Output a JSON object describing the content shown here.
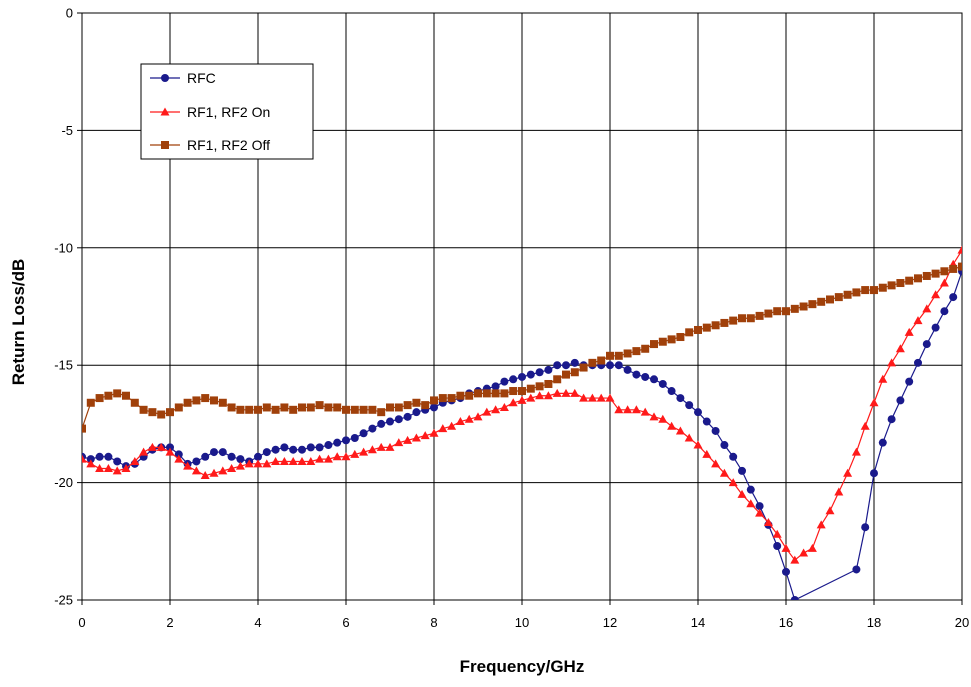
{
  "chart_data": {
    "type": "line",
    "title": "",
    "xlabel": "Frequency/GHz",
    "ylabel": "Return Loss/dB",
    "xlim": [
      0,
      20
    ],
    "ylim": [
      -25,
      0
    ],
    "x_ticks": [
      0,
      2,
      4,
      6,
      8,
      10,
      12,
      14,
      16,
      18,
      20
    ],
    "y_ticks": [
      0,
      -5,
      -10,
      -15,
      -20,
      -25
    ],
    "x_tick_labels": [
      "0",
      "2",
      "4",
      "6",
      "8",
      "10",
      "12",
      "14",
      "16",
      "18",
      "20"
    ],
    "y_tick_labels": [
      "0",
      "-5",
      "-10",
      "-15",
      "-20",
      "-25"
    ],
    "grid": true,
    "legend_position": "top-left",
    "series": [
      {
        "name": "RFC",
        "color": "#1a1a8c",
        "marker": "circle",
        "points": [
          [
            0,
            -18.9
          ],
          [
            0.2,
            -19.0
          ],
          [
            0.4,
            -18.9
          ],
          [
            0.6,
            -18.9
          ],
          [
            0.8,
            -19.1
          ],
          [
            1.0,
            -19.3
          ],
          [
            1.2,
            -19.2
          ],
          [
            1.4,
            -18.9
          ],
          [
            1.6,
            -18.6
          ],
          [
            1.8,
            -18.5
          ],
          [
            2.0,
            -18.5
          ],
          [
            2.2,
            -18.8
          ],
          [
            2.4,
            -19.2
          ],
          [
            2.6,
            -19.1
          ],
          [
            2.8,
            -18.9
          ],
          [
            3.0,
            -18.7
          ],
          [
            3.2,
            -18.7
          ],
          [
            3.4,
            -18.9
          ],
          [
            3.6,
            -19.0
          ],
          [
            3.8,
            -19.1
          ],
          [
            4.0,
            -18.9
          ],
          [
            4.2,
            -18.7
          ],
          [
            4.4,
            -18.6
          ],
          [
            4.6,
            -18.5
          ],
          [
            4.8,
            -18.6
          ],
          [
            5.0,
            -18.6
          ],
          [
            5.2,
            -18.5
          ],
          [
            5.4,
            -18.5
          ],
          [
            5.6,
            -18.4
          ],
          [
            5.8,
            -18.3
          ],
          [
            6.0,
            -18.2
          ],
          [
            6.2,
            -18.1
          ],
          [
            6.4,
            -17.9
          ],
          [
            6.6,
            -17.7
          ],
          [
            6.8,
            -17.5
          ],
          [
            7.0,
            -17.4
          ],
          [
            7.2,
            -17.3
          ],
          [
            7.4,
            -17.2
          ],
          [
            7.6,
            -17.0
          ],
          [
            7.8,
            -16.9
          ],
          [
            8.0,
            -16.8
          ],
          [
            8.2,
            -16.6
          ],
          [
            8.4,
            -16.5
          ],
          [
            8.6,
            -16.4
          ],
          [
            8.8,
            -16.2
          ],
          [
            9.0,
            -16.1
          ],
          [
            9.2,
            -16.0
          ],
          [
            9.4,
            -15.9
          ],
          [
            9.6,
            -15.7
          ],
          [
            9.8,
            -15.6
          ],
          [
            10.0,
            -15.5
          ],
          [
            10.2,
            -15.4
          ],
          [
            10.4,
            -15.3
          ],
          [
            10.6,
            -15.2
          ],
          [
            10.8,
            -15.0
          ],
          [
            11.0,
            -15.0
          ],
          [
            11.2,
            -14.9
          ],
          [
            11.4,
            -15.0
          ],
          [
            11.6,
            -15.0
          ],
          [
            11.8,
            -15.0
          ],
          [
            12.0,
            -15.0
          ],
          [
            12.2,
            -15.0
          ],
          [
            12.4,
            -15.2
          ],
          [
            12.6,
            -15.4
          ],
          [
            12.8,
            -15.5
          ],
          [
            13.0,
            -15.6
          ],
          [
            13.2,
            -15.8
          ],
          [
            13.4,
            -16.1
          ],
          [
            13.6,
            -16.4
          ],
          [
            13.8,
            -16.7
          ],
          [
            14.0,
            -17.0
          ],
          [
            14.2,
            -17.4
          ],
          [
            14.4,
            -17.8
          ],
          [
            14.6,
            -18.4
          ],
          [
            14.8,
            -18.9
          ],
          [
            15.0,
            -19.5
          ],
          [
            15.2,
            -20.3
          ],
          [
            15.4,
            -21.0
          ],
          [
            15.6,
            -21.8
          ],
          [
            15.8,
            -22.7
          ],
          [
            16.0,
            -23.8
          ],
          [
            16.2,
            -25.0
          ],
          [
            17.6,
            -23.7
          ],
          [
            17.8,
            -21.9
          ],
          [
            18.0,
            -19.6
          ],
          [
            18.2,
            -18.3
          ],
          [
            18.4,
            -17.3
          ],
          [
            18.6,
            -16.5
          ],
          [
            18.8,
            -15.7
          ],
          [
            19.0,
            -14.9
          ],
          [
            19.2,
            -14.1
          ],
          [
            19.4,
            -13.4
          ],
          [
            19.6,
            -12.7
          ],
          [
            19.8,
            -12.1
          ],
          [
            20.0,
            -11.0
          ]
        ]
      },
      {
        "name": "RF1, RF2 On",
        "color": "#ff1a1a",
        "marker": "triangle",
        "points": [
          [
            0,
            -19.0
          ],
          [
            0.2,
            -19.2
          ],
          [
            0.4,
            -19.4
          ],
          [
            0.6,
            -19.4
          ],
          [
            0.8,
            -19.5
          ],
          [
            1.0,
            -19.4
          ],
          [
            1.2,
            -19.1
          ],
          [
            1.4,
            -18.7
          ],
          [
            1.6,
            -18.5
          ],
          [
            1.8,
            -18.5
          ],
          [
            2.0,
            -18.7
          ],
          [
            2.2,
            -19.0
          ],
          [
            2.4,
            -19.3
          ],
          [
            2.6,
            -19.5
          ],
          [
            2.8,
            -19.7
          ],
          [
            3.0,
            -19.6
          ],
          [
            3.2,
            -19.5
          ],
          [
            3.4,
            -19.4
          ],
          [
            3.6,
            -19.3
          ],
          [
            3.8,
            -19.2
          ],
          [
            4.0,
            -19.2
          ],
          [
            4.2,
            -19.2
          ],
          [
            4.4,
            -19.1
          ],
          [
            4.6,
            -19.1
          ],
          [
            4.8,
            -19.1
          ],
          [
            5.0,
            -19.1
          ],
          [
            5.2,
            -19.1
          ],
          [
            5.4,
            -19.0
          ],
          [
            5.6,
            -19.0
          ],
          [
            5.8,
            -18.9
          ],
          [
            6.0,
            -18.9
          ],
          [
            6.2,
            -18.8
          ],
          [
            6.4,
            -18.7
          ],
          [
            6.6,
            -18.6
          ],
          [
            6.8,
            -18.5
          ],
          [
            7.0,
            -18.5
          ],
          [
            7.2,
            -18.3
          ],
          [
            7.4,
            -18.2
          ],
          [
            7.6,
            -18.1
          ],
          [
            7.8,
            -18.0
          ],
          [
            8.0,
            -17.9
          ],
          [
            8.2,
            -17.7
          ],
          [
            8.4,
            -17.6
          ],
          [
            8.6,
            -17.4
          ],
          [
            8.8,
            -17.3
          ],
          [
            9.0,
            -17.2
          ],
          [
            9.2,
            -17.0
          ],
          [
            9.4,
            -16.9
          ],
          [
            9.6,
            -16.8
          ],
          [
            9.8,
            -16.6
          ],
          [
            10.0,
            -16.5
          ],
          [
            10.2,
            -16.4
          ],
          [
            10.4,
            -16.3
          ],
          [
            10.6,
            -16.3
          ],
          [
            10.8,
            -16.2
          ],
          [
            11.0,
            -16.2
          ],
          [
            11.2,
            -16.2
          ],
          [
            11.4,
            -16.4
          ],
          [
            11.6,
            -16.4
          ],
          [
            11.8,
            -16.4
          ],
          [
            12.0,
            -16.4
          ],
          [
            12.2,
            -16.9
          ],
          [
            12.4,
            -16.9
          ],
          [
            12.6,
            -16.9
          ],
          [
            12.8,
            -17.0
          ],
          [
            13.0,
            -17.2
          ],
          [
            13.2,
            -17.3
          ],
          [
            13.4,
            -17.6
          ],
          [
            13.6,
            -17.8
          ],
          [
            13.8,
            -18.1
          ],
          [
            14.0,
            -18.4
          ],
          [
            14.2,
            -18.8
          ],
          [
            14.4,
            -19.2
          ],
          [
            14.6,
            -19.6
          ],
          [
            14.8,
            -20.0
          ],
          [
            15.0,
            -20.5
          ],
          [
            15.2,
            -20.9
          ],
          [
            15.4,
            -21.3
          ],
          [
            15.6,
            -21.7
          ],
          [
            15.8,
            -22.2
          ],
          [
            16.0,
            -22.8
          ],
          [
            16.2,
            -23.3
          ],
          [
            16.4,
            -23.0
          ],
          [
            16.6,
            -22.8
          ],
          [
            16.8,
            -21.8
          ],
          [
            17.0,
            -21.2
          ],
          [
            17.2,
            -20.4
          ],
          [
            17.4,
            -19.6
          ],
          [
            17.6,
            -18.7
          ],
          [
            17.8,
            -17.6
          ],
          [
            18.0,
            -16.6
          ],
          [
            18.2,
            -15.6
          ],
          [
            18.4,
            -14.9
          ],
          [
            18.6,
            -14.3
          ],
          [
            18.8,
            -13.6
          ],
          [
            19.0,
            -13.1
          ],
          [
            19.2,
            -12.6
          ],
          [
            19.4,
            -12.0
          ],
          [
            19.6,
            -11.5
          ],
          [
            19.8,
            -10.7
          ],
          [
            20.0,
            -10.1
          ]
        ]
      },
      {
        "name": "RF1, RF2 Off",
        "color": "#a0400a",
        "marker": "square",
        "points": [
          [
            0,
            -17.7
          ],
          [
            0.2,
            -16.6
          ],
          [
            0.4,
            -16.4
          ],
          [
            0.6,
            -16.3
          ],
          [
            0.8,
            -16.2
          ],
          [
            1.0,
            -16.3
          ],
          [
            1.2,
            -16.6
          ],
          [
            1.4,
            -16.9
          ],
          [
            1.6,
            -17.0
          ],
          [
            1.8,
            -17.1
          ],
          [
            2.0,
            -17.0
          ],
          [
            2.2,
            -16.8
          ],
          [
            2.4,
            -16.6
          ],
          [
            2.6,
            -16.5
          ],
          [
            2.8,
            -16.4
          ],
          [
            3.0,
            -16.5
          ],
          [
            3.2,
            -16.6
          ],
          [
            3.4,
            -16.8
          ],
          [
            3.6,
            -16.9
          ],
          [
            3.8,
            -16.9
          ],
          [
            4.0,
            -16.9
          ],
          [
            4.2,
            -16.8
          ],
          [
            4.4,
            -16.9
          ],
          [
            4.6,
            -16.8
          ],
          [
            4.8,
            -16.9
          ],
          [
            5.0,
            -16.8
          ],
          [
            5.2,
            -16.8
          ],
          [
            5.4,
            -16.7
          ],
          [
            5.6,
            -16.8
          ],
          [
            5.8,
            -16.8
          ],
          [
            6.0,
            -16.9
          ],
          [
            6.2,
            -16.9
          ],
          [
            6.4,
            -16.9
          ],
          [
            6.6,
            -16.9
          ],
          [
            6.8,
            -17.0
          ],
          [
            7.0,
            -16.8
          ],
          [
            7.2,
            -16.8
          ],
          [
            7.4,
            -16.7
          ],
          [
            7.6,
            -16.6
          ],
          [
            7.8,
            -16.7
          ],
          [
            8.0,
            -16.5
          ],
          [
            8.2,
            -16.4
          ],
          [
            8.4,
            -16.4
          ],
          [
            8.6,
            -16.3
          ],
          [
            8.8,
            -16.3
          ],
          [
            9.0,
            -16.2
          ],
          [
            9.2,
            -16.2
          ],
          [
            9.4,
            -16.2
          ],
          [
            9.6,
            -16.2
          ],
          [
            9.8,
            -16.1
          ],
          [
            10.0,
            -16.1
          ],
          [
            10.2,
            -16.0
          ],
          [
            10.4,
            -15.9
          ],
          [
            10.6,
            -15.8
          ],
          [
            10.8,
            -15.6
          ],
          [
            11.0,
            -15.4
          ],
          [
            11.2,
            -15.3
          ],
          [
            11.4,
            -15.1
          ],
          [
            11.6,
            -14.9
          ],
          [
            11.8,
            -14.8
          ],
          [
            12.0,
            -14.6
          ],
          [
            12.2,
            -14.6
          ],
          [
            12.4,
            -14.5
          ],
          [
            12.6,
            -14.4
          ],
          [
            12.8,
            -14.3
          ],
          [
            13.0,
            -14.1
          ],
          [
            13.2,
            -14.0
          ],
          [
            13.4,
            -13.9
          ],
          [
            13.6,
            -13.8
          ],
          [
            13.8,
            -13.6
          ],
          [
            14.0,
            -13.5
          ],
          [
            14.2,
            -13.4
          ],
          [
            14.4,
            -13.3
          ],
          [
            14.6,
            -13.2
          ],
          [
            14.8,
            -13.1
          ],
          [
            15.0,
            -13.0
          ],
          [
            15.2,
            -13.0
          ],
          [
            15.4,
            -12.9
          ],
          [
            15.6,
            -12.8
          ],
          [
            15.8,
            -12.7
          ],
          [
            16.0,
            -12.7
          ],
          [
            16.2,
            -12.6
          ],
          [
            16.4,
            -12.5
          ],
          [
            16.6,
            -12.4
          ],
          [
            16.8,
            -12.3
          ],
          [
            17.0,
            -12.2
          ],
          [
            17.2,
            -12.1
          ],
          [
            17.4,
            -12.0
          ],
          [
            17.6,
            -11.9
          ],
          [
            17.8,
            -11.8
          ],
          [
            18.0,
            -11.8
          ],
          [
            18.2,
            -11.7
          ],
          [
            18.4,
            -11.6
          ],
          [
            18.6,
            -11.5
          ],
          [
            18.8,
            -11.4
          ],
          [
            19.0,
            -11.3
          ],
          [
            19.2,
            -11.2
          ],
          [
            19.4,
            -11.1
          ],
          [
            19.6,
            -11.0
          ],
          [
            19.8,
            -10.9
          ],
          [
            20.0,
            -10.8
          ]
        ]
      }
    ]
  }
}
